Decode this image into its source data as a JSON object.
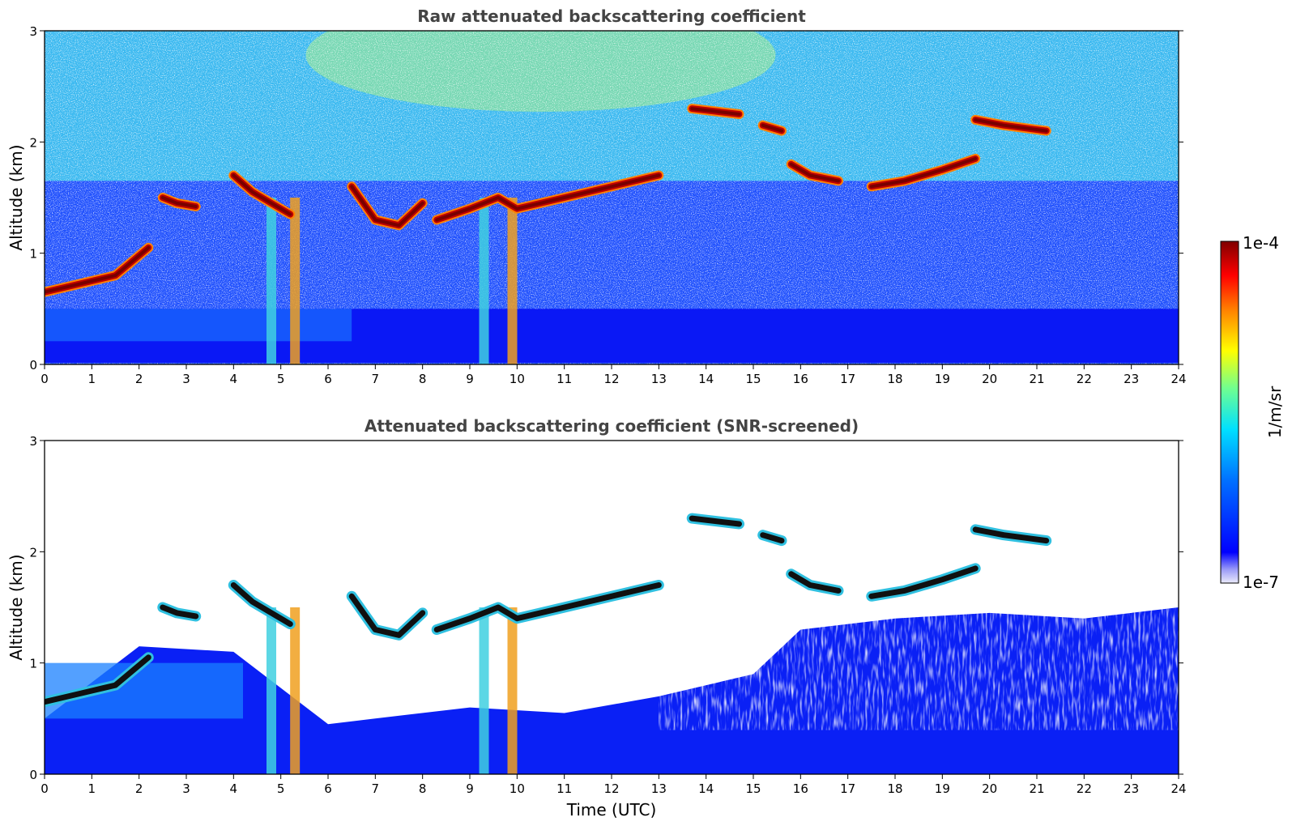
{
  "colors": {
    "jet": [
      "#ebebfa",
      "#0000ff",
      "#0080ff",
      "#00ffff",
      "#80ff80",
      "#ffff00",
      "#ff8000",
      "#ff0000",
      "#800000"
    ],
    "background": "#ffffff",
    "title_color": "#444444"
  },
  "colorbar": {
    "max_label": "1e-4",
    "min_label": "1e-7",
    "unit_label": "1/m/sr",
    "scale": "log",
    "range": [
      1e-07,
      0.0001
    ]
  },
  "chart_data": [
    {
      "type": "heatmap",
      "title": "Raw attenuated backscattering coefficient",
      "xlabel": "",
      "ylabel": "Altitude (km)",
      "xlim": [
        0,
        24
      ],
      "ylim": [
        0,
        3
      ],
      "xticks": [
        "0",
        "1",
        "2",
        "3",
        "4",
        "5",
        "6",
        "7",
        "8",
        "9",
        "10",
        "11",
        "12",
        "13",
        "14",
        "15",
        "16",
        "17",
        "18",
        "19",
        "20",
        "21",
        "22",
        "23",
        "24"
      ],
      "yticks": [
        "0",
        "1",
        "2",
        "3"
      ],
      "cloud_layers": [
        {
          "t": [
            0.0,
            0.5,
            1.0,
            1.5,
            2.2
          ],
          "alt": [
            0.65,
            0.7,
            0.75,
            0.8,
            1.05
          ]
        },
        {
          "t": [
            2.5,
            2.8,
            3.2
          ],
          "alt": [
            1.5,
            1.45,
            1.42
          ]
        },
        {
          "t": [
            4.0,
            4.4,
            4.8,
            5.2
          ],
          "alt": [
            1.7,
            1.55,
            1.45,
            1.35
          ]
        },
        {
          "t": [
            6.5,
            7.0,
            7.5,
            8.0
          ],
          "alt": [
            1.6,
            1.3,
            1.25,
            1.45
          ]
        },
        {
          "t": [
            8.3,
            9.0,
            9.6,
            10.0,
            11.0,
            12.0,
            13.0
          ],
          "alt": [
            1.3,
            1.4,
            1.5,
            1.4,
            1.5,
            1.6,
            1.7
          ]
        },
        {
          "t": [
            13.7,
            14.7
          ],
          "alt": [
            2.3,
            2.25
          ]
        },
        {
          "t": [
            15.2,
            15.6
          ],
          "alt": [
            2.15,
            2.1
          ]
        },
        {
          "t": [
            15.8,
            16.2,
            16.8
          ],
          "alt": [
            1.8,
            1.7,
            1.65
          ]
        },
        {
          "t": [
            17.5,
            18.2,
            19.0,
            19.7
          ],
          "alt": [
            1.6,
            1.65,
            1.75,
            1.85
          ]
        },
        {
          "t": [
            19.7,
            20.3,
            21.2
          ],
          "alt": [
            2.2,
            2.15,
            2.1
          ]
        }
      ],
      "precipitation_shafts_utc": [
        4.8,
        5.3,
        9.3,
        9.9
      ]
    },
    {
      "type": "heatmap",
      "title": "Attenuated backscattering coefficient (SNR-screened)",
      "xlabel": "Time (UTC)",
      "ylabel": "Altitude (km)",
      "xlim": [
        0,
        24
      ],
      "ylim": [
        0,
        3
      ],
      "xticks": [
        "0",
        "1",
        "2",
        "3",
        "4",
        "5",
        "6",
        "7",
        "8",
        "9",
        "10",
        "11",
        "12",
        "13",
        "14",
        "15",
        "16",
        "17",
        "18",
        "19",
        "20",
        "21",
        "22",
        "23",
        "24"
      ],
      "yticks": [
        "0",
        "1",
        "2",
        "3"
      ],
      "screened_boundary": {
        "t": [
          0,
          2,
          4,
          6,
          7,
          9,
          11,
          13,
          15,
          16,
          18,
          20,
          22,
          24
        ],
        "alt": [
          0.5,
          1.15,
          1.1,
          0.45,
          0.5,
          0.6,
          0.55,
          0.7,
          0.9,
          1.3,
          1.4,
          1.45,
          1.4,
          1.5
        ]
      }
    }
  ]
}
